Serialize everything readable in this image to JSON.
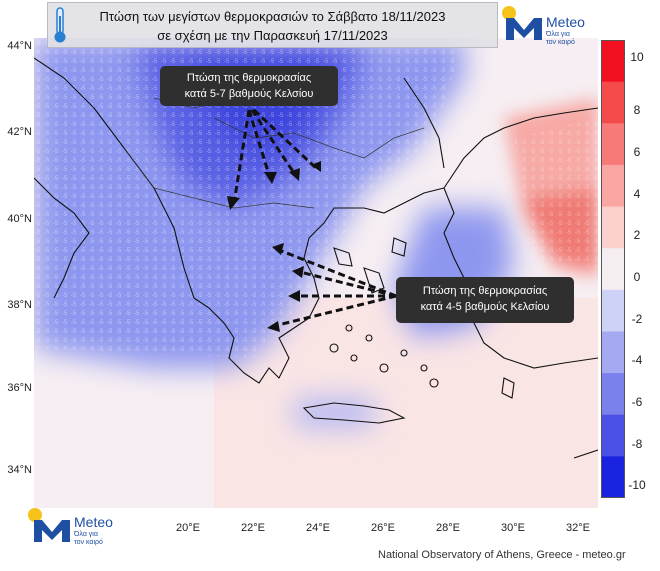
{
  "title": {
    "line1": "Πτώση των μεγίστων θερμοκρασιών το Σάββατο 18/11/2023",
    "line2": "σε σχέση με την Παρασκευή 17/11/2023"
  },
  "brand": {
    "name": "Meteo",
    "slogan_line1": "Όλα για",
    "slogan_line2": "τον καιρό"
  },
  "callouts": {
    "north": {
      "line1": "Πτώση της θερμοκρασίας",
      "line2": "κατά 5-7 βαθμούς Κελσίου"
    },
    "south": {
      "line1": "Πτώση της θερμοκρασίας",
      "line2": "κατά 4-5 βαθμούς Κελσίου"
    }
  },
  "axes": {
    "lat_labels": [
      "44°N",
      "42°N",
      "40°N",
      "38°N",
      "36°N",
      "34°N"
    ],
    "lon_labels": [
      "20°E",
      "22°E",
      "24°E",
      "26°E",
      "28°E",
      "30°E",
      "32°E"
    ]
  },
  "colorbar": {
    "labels": [
      "10",
      "8",
      "6",
      "4",
      "2",
      "0",
      "-2",
      "-4",
      "-6",
      "-8",
      "-10"
    ],
    "colors": [
      "#f01020",
      "#f54a4a",
      "#f77a78",
      "#f9a6a2",
      "#fbd0cc",
      "#f4eef0",
      "#cfd2f7",
      "#a4a9f2",
      "#7a80ec",
      "#4a50e6",
      "#1a24e0"
    ]
  },
  "credit": "National Observatory of Athens, Greece - meteo.gr",
  "icons": {
    "thermometer": "thermometer-icon",
    "logo": "meteo-logo-icon"
  }
}
